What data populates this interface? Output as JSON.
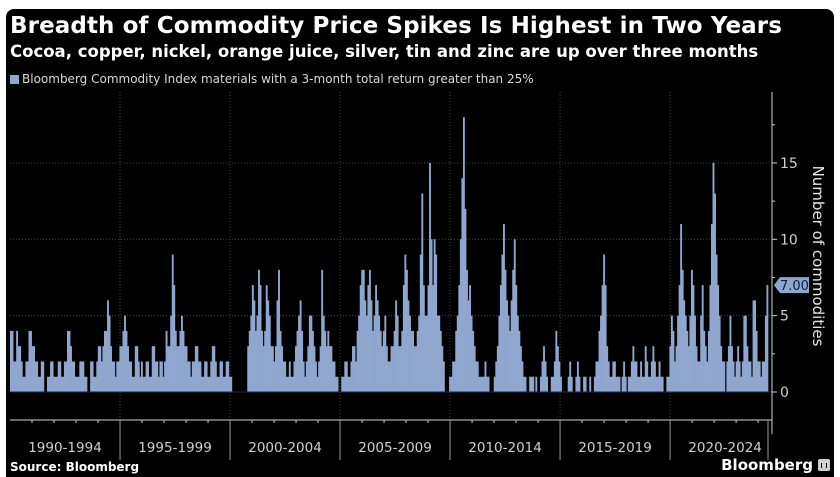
{
  "header": {
    "title": "Breadth of Commodity Price Spikes Is Highest in Two Years",
    "subtitle": "Cocoa, copper, nickel, orange juice, silver, tin and zinc are up over three months",
    "legend_label": "Bloomberg Commodity Index materials with a 3-month total return greater than 25%"
  },
  "footer": {
    "source": "Source: Bloomberg",
    "brand": "Bloomberg"
  },
  "colors": {
    "background": "#000000",
    "bar": "#8fa7cf",
    "grid": "#444444",
    "text": "#cfcfcf",
    "callout_fill": "#8fa7cf",
    "callout_text": "#0b1f3d"
  },
  "chart_data": {
    "type": "bar",
    "title": "Breadth of Commodity Price Spikes Is Highest in Two Years",
    "subtitle": "Cocoa, copper, nickel, orange juice, silver, tin and zinc are up over three months",
    "legend": [
      "Bloomberg Commodity Index materials with a 3-month total return greater than 25%"
    ],
    "legend_position": "top-left",
    "xlabel": "",
    "ylabel": "Number of commodities",
    "y_axis_side": "right",
    "ylim": [
      -2,
      19
    ],
    "yticks": [
      0,
      5,
      10,
      15
    ],
    "grid": true,
    "x_start": 1990.0,
    "x_end": 2024.45,
    "period_labels": [
      "1990-1994",
      "1995-1999",
      "2000-2004",
      "2005-2009",
      "2010-2014",
      "2015-2019",
      "2020-2024"
    ],
    "last_value_label": "7.00",
    "last_value": 7,
    "values": [
      4,
      4,
      2,
      2,
      4,
      3,
      3,
      2,
      1,
      1,
      2,
      2,
      4,
      4,
      3,
      3,
      2,
      2,
      1,
      1,
      2,
      2,
      0,
      0,
      1,
      1,
      2,
      2,
      1,
      1,
      1,
      2,
      2,
      1,
      1,
      2,
      2,
      4,
      4,
      3,
      2,
      2,
      1,
      1,
      1,
      2,
      2,
      2,
      1,
      1,
      0,
      0,
      2,
      2,
      1,
      1,
      2,
      3,
      3,
      2,
      3,
      4,
      4,
      6,
      5,
      3,
      2,
      2,
      1,
      2,
      2,
      3,
      3,
      4,
      5,
      4,
      3,
      2,
      2,
      1,
      1,
      3,
      3,
      2,
      1,
      2,
      1,
      1,
      2,
      2,
      1,
      1,
      3,
      3,
      2,
      2,
      1,
      2,
      2,
      1,
      2,
      4,
      3,
      3,
      5,
      9,
      7,
      4,
      3,
      3,
      4,
      5,
      4,
      3,
      3,
      2,
      2,
      1,
      2,
      2,
      3,
      3,
      2,
      2,
      1,
      1,
      2,
      2,
      1,
      1,
      2,
      3,
      3,
      2,
      1,
      1,
      2,
      2,
      1,
      1,
      2,
      2,
      1,
      1,
      0,
      0,
      0,
      0,
      0,
      0,
      0,
      0,
      0,
      0,
      3,
      4,
      5,
      7,
      6,
      4,
      5,
      8,
      7,
      4,
      3,
      4,
      7,
      6,
      5,
      3,
      3,
      2,
      3,
      6,
      8,
      4,
      3,
      2,
      2,
      1,
      1,
      2,
      1,
      1,
      2,
      3,
      4,
      5,
      6,
      4,
      2,
      1,
      2,
      3,
      5,
      5,
      4,
      3,
      2,
      1,
      2,
      3,
      8,
      5,
      4,
      3,
      4,
      3,
      3,
      2,
      2,
      1,
      1,
      0,
      0,
      1,
      1,
      2,
      2,
      1,
      1,
      2,
      3,
      3,
      2,
      4,
      5,
      7,
      8,
      8,
      6,
      5,
      7,
      8,
      6,
      4,
      5,
      7,
      6,
      5,
      4,
      3,
      4,
      5,
      3,
      2,
      2,
      3,
      3,
      4,
      6,
      5,
      3,
      3,
      4,
      7,
      9,
      8,
      6,
      5,
      4,
      4,
      3,
      3,
      4,
      5,
      9,
      13,
      7,
      5,
      5,
      7,
      15,
      10,
      7,
      10,
      9,
      5,
      5,
      4,
      3,
      2,
      0,
      0,
      0,
      1,
      1,
      2,
      2,
      4,
      5,
      7,
      10,
      14,
      18,
      12,
      8,
      6,
      7,
      5,
      4,
      3,
      2,
      2,
      1,
      1,
      1,
      1,
      2,
      1,
      1,
      0,
      0,
      0,
      1,
      2,
      3,
      5,
      7,
      9,
      11,
      8,
      6,
      5,
      4,
      6,
      8,
      10,
      7,
      5,
      4,
      3,
      2,
      1,
      1,
      0,
      0,
      1,
      1,
      1,
      0,
      1,
      0,
      0,
      1,
      2,
      3,
      2,
      1,
      0,
      0,
      1,
      1,
      2,
      4,
      3,
      2,
      1,
      0,
      0,
      0,
      0,
      1,
      2,
      1,
      0,
      0,
      1,
      2,
      1,
      0,
      0,
      1,
      1,
      0,
      0,
      1,
      0,
      0,
      1,
      2,
      2,
      4,
      5,
      7,
      9,
      7,
      3,
      2,
      1,
      1,
      2,
      2,
      1,
      1,
      1,
      0,
      1,
      2,
      1,
      0,
      1,
      1,
      2,
      3,
      2,
      2,
      1,
      1,
      2,
      1,
      1,
      3,
      2,
      1,
      1,
      2,
      3,
      2,
      1,
      1,
      2,
      1,
      1,
      0,
      0,
      1,
      1,
      3,
      5,
      4,
      2,
      3,
      5,
      7,
      11,
      8,
      6,
      5,
      4,
      3,
      5,
      8,
      7,
      5,
      3,
      2,
      2,
      5,
      7,
      4,
      3,
      2,
      4,
      7,
      11,
      15,
      13,
      9,
      7,
      5,
      3,
      2,
      2,
      0,
      2,
      3,
      5,
      3,
      2,
      1,
      2,
      3,
      2,
      1,
      2,
      5,
      5,
      3,
      2,
      2,
      1,
      6,
      6,
      4,
      2,
      2,
      1,
      2,
      2,
      5,
      7
    ]
  }
}
